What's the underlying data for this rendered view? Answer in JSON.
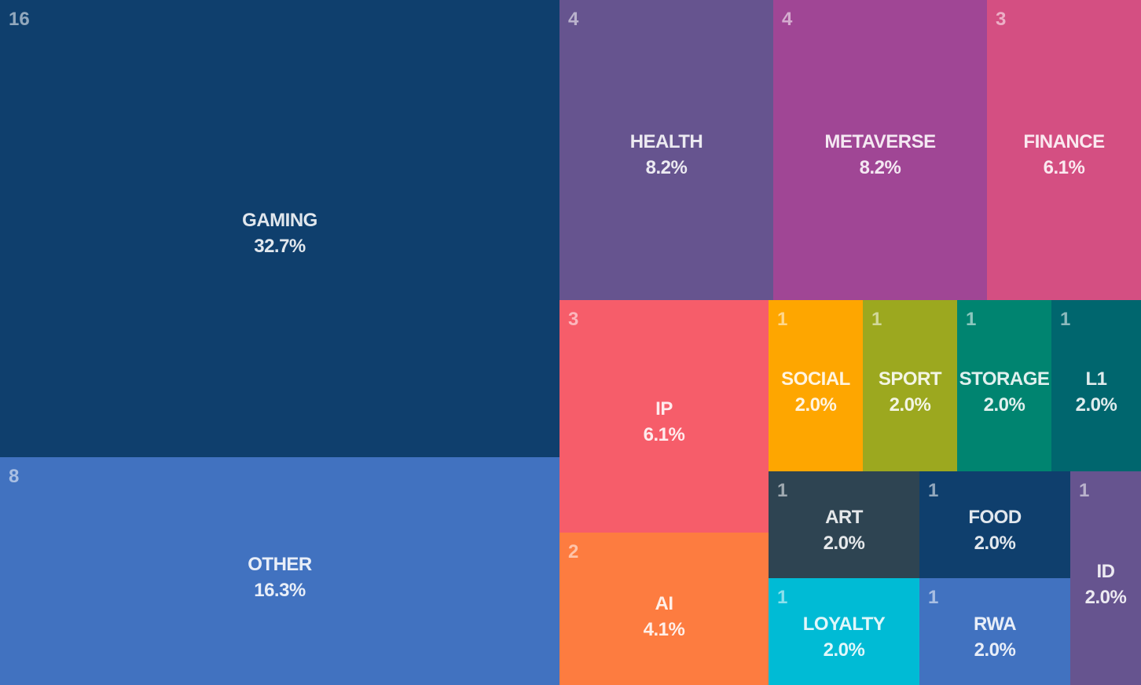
{
  "chart_data": {
    "type": "treemap",
    "items": [
      {
        "name": "GAMING",
        "count": "16",
        "percent": "32.7%",
        "color": "#0f3f6d"
      },
      {
        "name": "OTHER",
        "count": "8",
        "percent": "16.3%",
        "color": "#4172c0"
      },
      {
        "name": "HEALTH",
        "count": "4",
        "percent": "8.2%",
        "color": "#66548f"
      },
      {
        "name": "METAVERSE",
        "count": "4",
        "percent": "8.2%",
        "color": "#a04695"
      },
      {
        "name": "FINANCE",
        "count": "3",
        "percent": "6.1%",
        "color": "#d44f82"
      },
      {
        "name": "IP",
        "count": "3",
        "percent": "6.1%",
        "color": "#f65d6a"
      },
      {
        "name": "AI",
        "count": "2",
        "percent": "4.1%",
        "color": "#fd7c40"
      },
      {
        "name": "SOCIAL",
        "count": "1",
        "percent": "2.0%",
        "color": "#fea600"
      },
      {
        "name": "SPORT",
        "count": "1",
        "percent": "2.0%",
        "color": "#9ca81f"
      },
      {
        "name": "STORAGE",
        "count": "1",
        "percent": "2.0%",
        "color": "#008470"
      },
      {
        "name": "L1",
        "count": "1",
        "percent": "2.0%",
        "color": "#00666e"
      },
      {
        "name": "ART",
        "count": "1",
        "percent": "2.0%",
        "color": "#2e4452"
      },
      {
        "name": "FOOD",
        "count": "1",
        "percent": "2.0%",
        "color": "#0f3f6d"
      },
      {
        "name": "ID",
        "count": "1",
        "percent": "2.0%",
        "color": "#66548f"
      },
      {
        "name": "LOYALTY",
        "count": "1",
        "percent": "2.0%",
        "color": "#00bbd5"
      },
      {
        "name": "RWA",
        "count": "1",
        "percent": "2.0%",
        "color": "#4172c0"
      }
    ]
  }
}
